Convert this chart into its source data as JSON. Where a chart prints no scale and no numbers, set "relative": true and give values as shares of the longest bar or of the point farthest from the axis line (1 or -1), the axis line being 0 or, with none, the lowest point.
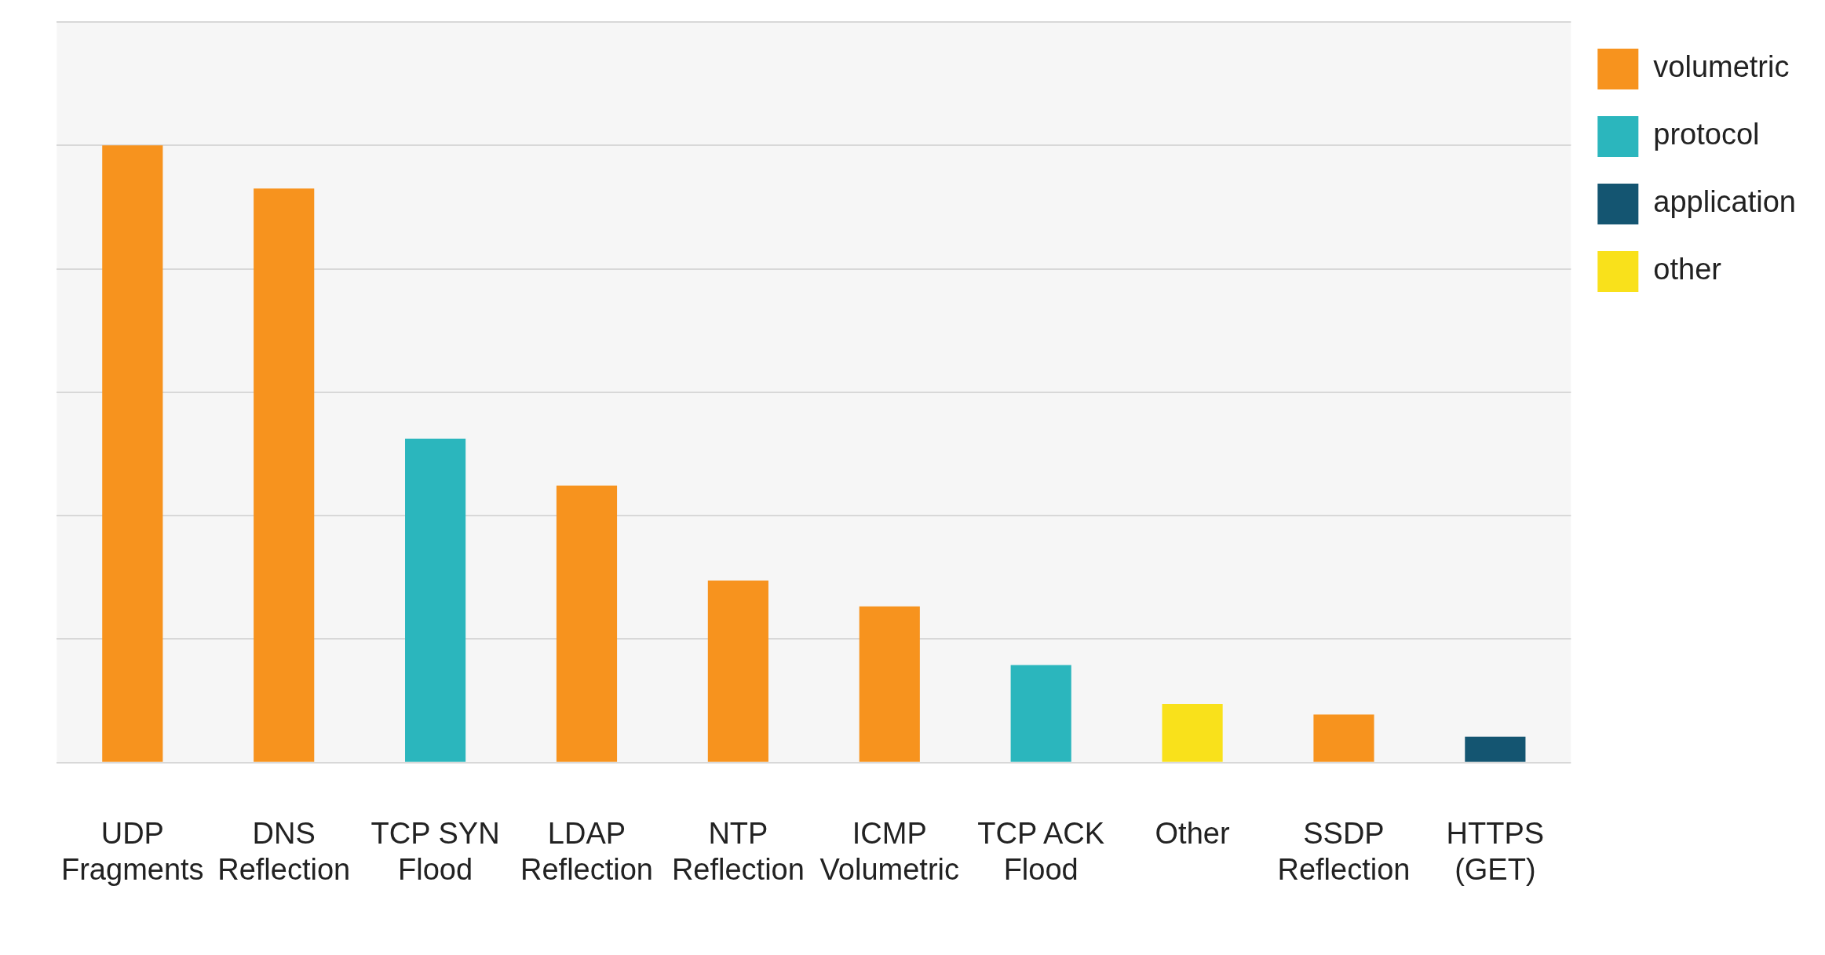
{
  "chart_data": {
    "type": "bar",
    "relative": true,
    "grid": "y",
    "legend": "top right",
    "categories": [
      "UDP\nFragments",
      "DNS\nReflection",
      "TCP SYN\nFlood",
      "LDAP\nReflection",
      "NTP\nReflection",
      "ICMP\nVolumetric",
      "TCP ACK\nFlood",
      "Other",
      "SSDP\nReflection",
      "HTTPS\n(GET)"
    ],
    "series": [
      {
        "name": "volumetric",
        "color": "#f7931e",
        "values": [
          1,
          0.93,
          null,
          0.449,
          0.295,
          0.253,
          null,
          null,
          0.078,
          null
        ]
      },
      {
        "name": "protocol",
        "color": "#2bb6bd",
        "values": [
          null,
          null,
          0.525,
          null,
          null,
          null,
          0.158,
          null,
          null,
          null
        ]
      },
      {
        "name": "application",
        "color": "#145571",
        "values": [
          null,
          null,
          null,
          null,
          null,
          null,
          null,
          null,
          null,
          0.042
        ]
      },
      {
        "name": "other",
        "color": "#f9e11b",
        "values": [
          null,
          null,
          null,
          null,
          null,
          null,
          null,
          0.095,
          null,
          null
        ]
      }
    ]
  }
}
